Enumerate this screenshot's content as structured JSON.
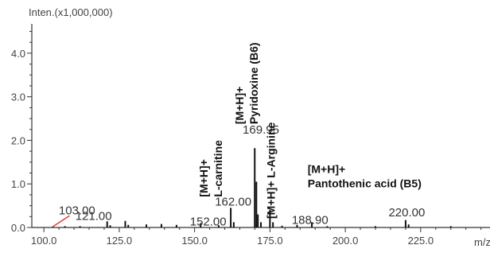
{
  "chart_data": {
    "type": "bar",
    "ylabel": "Inten.(x1,000,000)",
    "xlabel": "m/z",
    "xlim": [
      96,
      248
    ],
    "ylim": [
      0,
      4.6
    ],
    "x_ticks": [
      100,
      125,
      150,
      175,
      200,
      225
    ],
    "x_tick_labels": [
      "100.0",
      "125.0",
      "150.0",
      "175.0",
      "200.0",
      "225.0"
    ],
    "y_ticks": [
      0,
      1,
      2,
      3,
      4
    ],
    "y_tick_labels": [
      "0.0",
      "1.0",
      "2.0",
      "3.0",
      "4.0"
    ],
    "peaks": [
      {
        "mz": 103.0,
        "intensity": 0.02
      },
      {
        "mz": 107.0,
        "intensity": 0.03
      },
      {
        "mz": 112.0,
        "intensity": 0.03
      },
      {
        "mz": 121.0,
        "intensity": 0.14
      },
      {
        "mz": 122.0,
        "intensity": 0.05
      },
      {
        "mz": 127.0,
        "intensity": 0.15
      },
      {
        "mz": 128.0,
        "intensity": 0.06
      },
      {
        "mz": 134.0,
        "intensity": 0.07
      },
      {
        "mz": 139.0,
        "intensity": 0.08
      },
      {
        "mz": 144.0,
        "intensity": 0.06
      },
      {
        "mz": 152.0,
        "intensity": 0.1
      },
      {
        "mz": 158.0,
        "intensity": 0.05
      },
      {
        "mz": 162.0,
        "intensity": 0.45
      },
      {
        "mz": 163.0,
        "intensity": 0.12
      },
      {
        "mz": 169.95,
        "intensity": 1.82
      },
      {
        "mz": 170.5,
        "intensity": 1.05
      },
      {
        "mz": 171.0,
        "intensity": 0.3
      },
      {
        "mz": 172.0,
        "intensity": 0.12
      },
      {
        "mz": 175.0,
        "intensity": 0.4
      },
      {
        "mz": 176.0,
        "intensity": 0.12
      },
      {
        "mz": 179.0,
        "intensity": 0.04
      },
      {
        "mz": 184.0,
        "intensity": 0.06
      },
      {
        "mz": 188.9,
        "intensity": 0.12
      },
      {
        "mz": 194.0,
        "intensity": 0.03
      },
      {
        "mz": 210.0,
        "intensity": 0.03
      },
      {
        "mz": 220.0,
        "intensity": 0.17
      },
      {
        "mz": 221.0,
        "intensity": 0.07
      },
      {
        "mz": 235.0,
        "intensity": 0.03
      }
    ],
    "peak_labels": [
      {
        "text": "103.00",
        "mz": 111.0,
        "y": 0.3
      },
      {
        "text": "121.00",
        "mz": 116.5,
        "y": 0.17
      },
      {
        "text": "152.00",
        "mz": 154.5,
        "y": 0.05
      },
      {
        "text": "162.00",
        "mz": 162.8,
        "y": 0.5
      },
      {
        "text": "169.95",
        "mz": 172.0,
        "y": 2.15
      },
      {
        "text": "188.90",
        "mz": 188.3,
        "y": 0.08
      },
      {
        "text": "220.00",
        "mz": 220.4,
        "y": 0.26
      }
    ],
    "pointer": {
      "from_mz": 103.0,
      "from_y": 0.02,
      "to_mz": 108.5,
      "to_y": 0.27,
      "color": "#e23b3b"
    },
    "annotations": [
      {
        "lines": [
          "[M+H]+",
          "L-carnitine"
        ],
        "rotated": true,
        "anchor_mz": 154.3,
        "anchor_y": 0.7
      },
      {
        "lines": [
          "[M+H]+",
          "Pyridoxine (B6)"
        ],
        "rotated": true,
        "anchor_mz": 166.2,
        "anchor_y": 2.37
      },
      {
        "lines": [
          "[M+H]+ L-Arginine"
        ],
        "rotated": true,
        "anchor_mz": 176.6,
        "anchor_y": 0.2
      },
      {
        "lines": [
          "[M+H]+",
          "Pantothenic acid (B5)"
        ],
        "rotated": false,
        "anchor_mz": 187.5,
        "anchor_y": 1.25
      }
    ],
    "colors": {
      "axis": "#333333",
      "peaks": "#111111",
      "labels": "#444444",
      "pointer": "#e23b3b"
    }
  }
}
